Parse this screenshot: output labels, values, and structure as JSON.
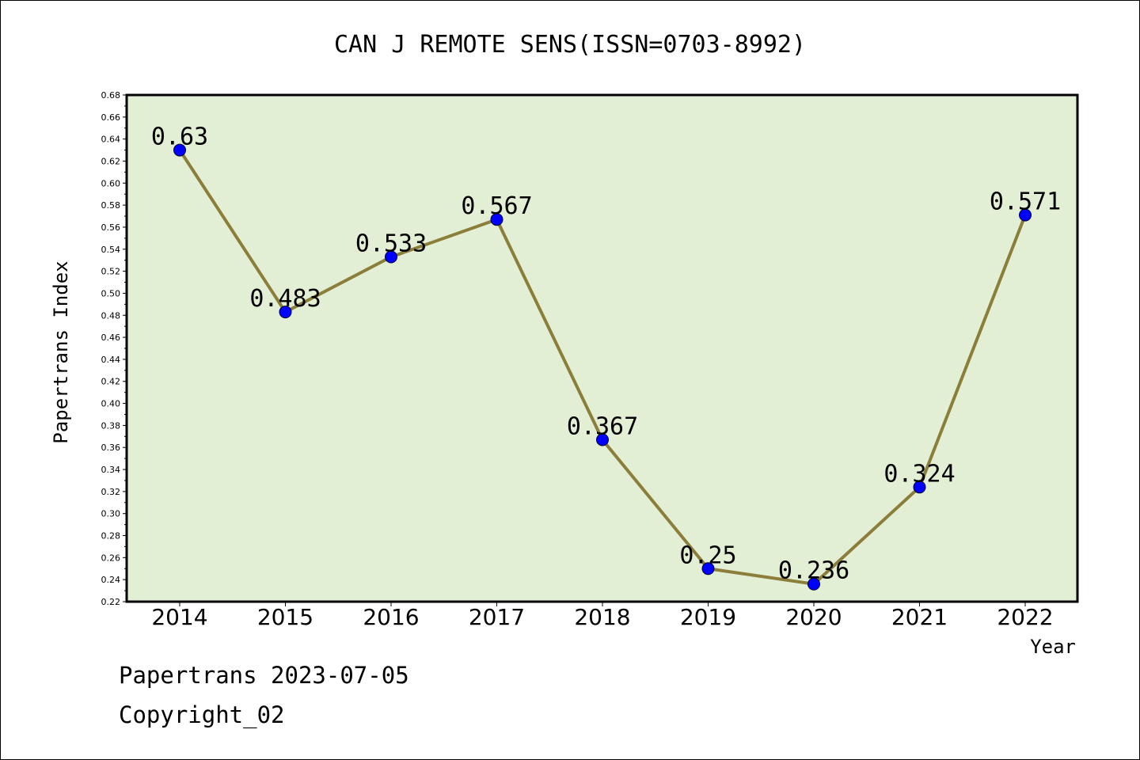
{
  "chart_data": {
    "type": "line",
    "title": "CAN J REMOTE SENS(ISSN=0703-8992)",
    "xlabel": "Year",
    "ylabel": "Papertrans Index",
    "categories": [
      "2014",
      "2015",
      "2016",
      "2017",
      "2018",
      "2019",
      "2020",
      "2021",
      "2022"
    ],
    "values": [
      0.63,
      0.483,
      0.533,
      0.567,
      0.367,
      0.25,
      0.236,
      0.324,
      0.571
    ],
    "data_labels": [
      "0.63",
      "0.483",
      "0.533",
      "0.567",
      "0.367",
      "0.25",
      "0.236",
      "0.324",
      "0.571"
    ],
    "ylim": [
      0.22,
      0.68
    ],
    "yticks": [
      "0.22",
      "0.24",
      "0.26",
      "0.28",
      "0.30",
      "0.32",
      "0.34",
      "0.36",
      "0.38",
      "0.40",
      "0.42",
      "0.44",
      "0.46",
      "0.48",
      "0.50",
      "0.52",
      "0.54",
      "0.56",
      "0.58",
      "0.60",
      "0.62",
      "0.64",
      "0.66",
      "0.68"
    ],
    "grid": false,
    "colors": {
      "plot_background": "#e2efd5",
      "line": "#8b7d3a",
      "marker": "#0000ff"
    }
  },
  "footer": {
    "line1": "Papertrans 2023-07-05",
    "line2": "Copyright_02"
  }
}
